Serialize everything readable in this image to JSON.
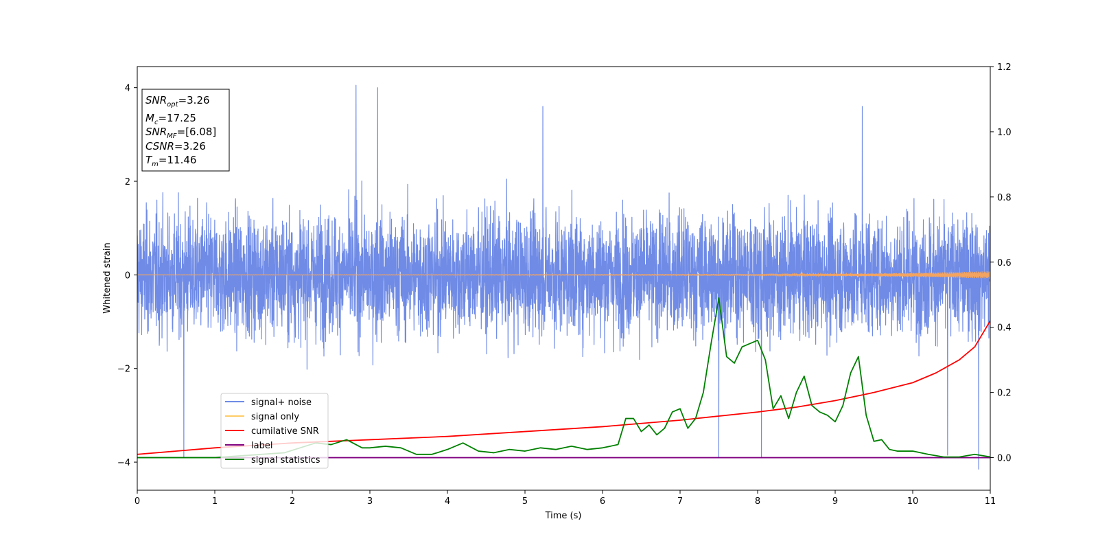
{
  "chart_data": {
    "type": "line",
    "xlabel": "Time (s)",
    "ylabel": "Whitened strain",
    "xlim": [
      0,
      11
    ],
    "ylim_left": [
      -4.6,
      4.45
    ],
    "ylim_right": [
      -0.1,
      1.2
    ],
    "x_ticks": [
      "0",
      "1",
      "2",
      "3",
      "4",
      "5",
      "6",
      "7",
      "8",
      "9",
      "10",
      "11"
    ],
    "y_ticks_left": [
      "4",
      "2",
      "0",
      "−2",
      "−4"
    ],
    "y_ticks_right": [
      "1.2",
      "1.0",
      "0.8",
      "0.6",
      "0.4",
      "0.2",
      "0.0"
    ],
    "grid": false,
    "legend_position": "lower-left",
    "legend": [
      {
        "label": "signal+ noise",
        "color": "#6f8be6"
      },
      {
        "label": "signal only",
        "color": "#ffcc66"
      },
      {
        "label": "cumilative SNR",
        "color": "#ff0000"
      },
      {
        "label": "label",
        "color": "#800080"
      },
      {
        "label": "signal statistics",
        "color": "#008000"
      }
    ],
    "info_box": [
      {
        "var": "SNR",
        "sub": "opt",
        "value": "=3.26"
      },
      {
        "var": "M",
        "sub": "c",
        "value": "=17.25"
      },
      {
        "var": "SNR",
        "sub": "MF",
        "value": "=[6.08]"
      },
      {
        "var": "CSNR",
        "sub": "",
        "value": "=3.26"
      },
      {
        "var": "T",
        "sub": "m",
        "value": "=11.46"
      }
    ],
    "series": [
      {
        "name": "signal+ noise",
        "axis": "left",
        "color": "#6f8be6",
        "description": "dense noise, amplitude approx ±2.5, peaks to +4.05 and -4.15",
        "peaks": [
          [
            2.82,
            4.05
          ],
          [
            3.1,
            4.0
          ],
          [
            10.85,
            -4.15
          ],
          [
            0.6,
            -3.9
          ],
          [
            7.5,
            -3.9
          ],
          [
            8.05,
            -3.9
          ],
          [
            9.35,
            3.6
          ],
          [
            5.23,
            3.6
          ],
          [
            10.45,
            -3.85
          ]
        ]
      },
      {
        "name": "signal only",
        "axis": "left",
        "color": "#f4a460",
        "x": [
          0,
          8,
          9.5,
          10.3,
          11
        ],
        "amplitude": [
          0.0,
          0.01,
          0.03,
          0.05,
          0.08
        ]
      },
      {
        "name": "cumilative SNR",
        "axis": "right",
        "color": "#ff0000",
        "x": [
          0,
          1,
          2,
          3,
          4,
          5,
          6,
          7,
          8,
          8.5,
          9,
          9.5,
          10,
          10.3,
          10.6,
          10.8,
          11
        ],
        "y": [
          0.01,
          0.03,
          0.045,
          0.055,
          0.065,
          0.08,
          0.095,
          0.115,
          0.14,
          0.155,
          0.175,
          0.2,
          0.23,
          0.26,
          0.3,
          0.34,
          0.42
        ]
      },
      {
        "name": "label",
        "axis": "right",
        "color": "#800080",
        "x": [
          0,
          11
        ],
        "y": [
          0.0,
          0.0
        ]
      },
      {
        "name": "signal statistics",
        "axis": "right",
        "color": "#008000",
        "x": [
          0,
          1.0,
          1.6,
          1.9,
          2.1,
          2.3,
          2.5,
          2.7,
          2.9,
          3.0,
          3.2,
          3.4,
          3.6,
          3.8,
          4.0,
          4.2,
          4.4,
          4.6,
          4.8,
          5.0,
          5.2,
          5.4,
          5.6,
          5.8,
          6.0,
          6.2,
          6.3,
          6.4,
          6.5,
          6.6,
          6.7,
          6.8,
          6.9,
          7.0,
          7.1,
          7.2,
          7.3,
          7.4,
          7.5,
          7.6,
          7.7,
          7.8,
          7.9,
          8.0,
          8.1,
          8.2,
          8.3,
          8.4,
          8.5,
          8.6,
          8.7,
          8.8,
          8.9,
          9.0,
          9.1,
          9.2,
          9.3,
          9.4,
          9.5,
          9.6,
          9.7,
          9.8,
          10.0,
          10.2,
          10.4,
          10.6,
          10.8,
          11.0
        ],
        "y": [
          0.0,
          0.0,
          0.01,
          0.015,
          0.03,
          0.045,
          0.04,
          0.055,
          0.03,
          0.03,
          0.035,
          0.03,
          0.01,
          0.01,
          0.025,
          0.045,
          0.02,
          0.015,
          0.025,
          0.02,
          0.03,
          0.025,
          0.035,
          0.025,
          0.03,
          0.04,
          0.12,
          0.12,
          0.08,
          0.1,
          0.07,
          0.09,
          0.14,
          0.15,
          0.09,
          0.12,
          0.2,
          0.35,
          0.49,
          0.31,
          0.29,
          0.34,
          0.35,
          0.36,
          0.3,
          0.15,
          0.19,
          0.12,
          0.2,
          0.25,
          0.16,
          0.14,
          0.13,
          0.11,
          0.16,
          0.26,
          0.31,
          0.13,
          0.05,
          0.055,
          0.025,
          0.02,
          0.02,
          0.01,
          0.002,
          0.002,
          0.01,
          0.002
        ]
      }
    ]
  }
}
